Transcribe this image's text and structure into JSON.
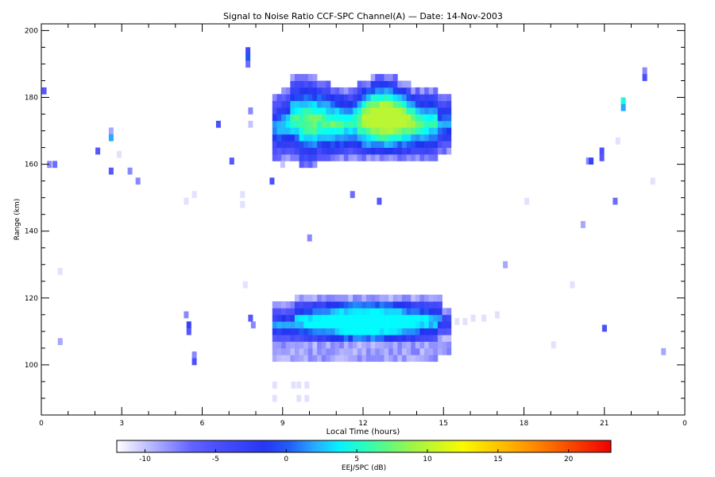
{
  "chart_data": {
    "type": "heatmap",
    "title": "Signal to Noise Ratio CCF-SPC Channel(A) — Date: 14-Nov-2003",
    "xlabel": "Local Time (hours)",
    "ylabel": "Range (km)",
    "xlim": [
      0,
      24
    ],
    "ylim": [
      85,
      202
    ],
    "x_ticks": [
      "0",
      "3",
      "6",
      "9",
      "12",
      "15",
      "18",
      "21",
      "0"
    ],
    "y_ticks": [
      "100",
      "120",
      "140",
      "160",
      "180",
      "200"
    ],
    "colorbar": {
      "label": "EEJ/SPC (dB)",
      "range": [
        -12,
        23
      ],
      "ticks": [
        "-10",
        "-5",
        "0",
        "5",
        "10",
        "15",
        "20"
      ]
    },
    "regions": [
      {
        "name": "upper-echo",
        "x_range": [
          8.7,
          15.3
        ],
        "y_range": [
          160,
          186
        ],
        "peak_db": 10,
        "peak_time": 13.0
      },
      {
        "name": "lower-echo",
        "x_range": [
          8.7,
          15.3
        ],
        "y_range": [
          103,
          120
        ],
        "peak_db": 4,
        "peak_time": 12.3
      }
    ],
    "sparse_points": [
      {
        "t": 0.1,
        "r": 182,
        "db": -6
      },
      {
        "t": 0.3,
        "r": 160,
        "db": -8
      },
      {
        "t": 0.5,
        "r": 160,
        "db": -7
      },
      {
        "t": 0.7,
        "r": 128,
        "db": -11
      },
      {
        "t": 0.7,
        "r": 107,
        "db": -9
      },
      {
        "t": 2.1,
        "r": 164,
        "db": -6
      },
      {
        "t": 2.6,
        "r": 170,
        "db": -9
      },
      {
        "t": 2.6,
        "r": 168,
        "db": 2
      },
      {
        "t": 2.6,
        "r": 158,
        "db": -6
      },
      {
        "t": 2.9,
        "r": 163,
        "db": -11
      },
      {
        "t": 3.3,
        "r": 158,
        "db": -8
      },
      {
        "t": 3.6,
        "r": 155,
        "db": -8
      },
      {
        "t": 5.4,
        "r": 149,
        "db": -11
      },
      {
        "t": 5.4,
        "r": 115,
        "db": -8
      },
      {
        "t": 5.5,
        "r": 112,
        "db": -3
      },
      {
        "t": 5.5,
        "r": 110,
        "db": -6
      },
      {
        "t": 5.7,
        "r": 151,
        "db": -11
      },
      {
        "t": 5.7,
        "r": 103,
        "db": -8
      },
      {
        "t": 5.7,
        "r": 101,
        "db": -5
      },
      {
        "t": 6.6,
        "r": 172,
        "db": -5
      },
      {
        "t": 7.1,
        "r": 161,
        "db": -6
      },
      {
        "t": 7.5,
        "r": 151,
        "db": -11
      },
      {
        "t": 7.5,
        "r": 148,
        "db": -11
      },
      {
        "t": 7.6,
        "r": 124,
        "db": -11
      },
      {
        "t": 7.7,
        "r": 194,
        "db": -4
      },
      {
        "t": 7.7,
        "r": 192,
        "db": 0
      },
      {
        "t": 7.7,
        "r": 190,
        "db": -7
      },
      {
        "t": 7.8,
        "r": 176,
        "db": -8
      },
      {
        "t": 7.8,
        "r": 172,
        "db": -10
      },
      {
        "t": 7.8,
        "r": 114,
        "db": -6
      },
      {
        "t": 7.9,
        "r": 112,
        "db": -8
      },
      {
        "t": 8.6,
        "r": 155,
        "db": -5
      },
      {
        "t": 8.7,
        "r": 94,
        "db": -11
      },
      {
        "t": 8.7,
        "r": 90,
        "db": -11
      },
      {
        "t": 9.0,
        "r": 160,
        "db": -10
      },
      {
        "t": 9.4,
        "r": 94,
        "db": -11
      },
      {
        "t": 9.6,
        "r": 94,
        "db": -11
      },
      {
        "t": 9.9,
        "r": 94,
        "db": -11
      },
      {
        "t": 9.6,
        "r": 90,
        "db": -11
      },
      {
        "t": 9.9,
        "r": 90,
        "db": -11
      },
      {
        "t": 10.0,
        "r": 138,
        "db": -8
      },
      {
        "t": 11.6,
        "r": 151,
        "db": -7
      },
      {
        "t": 12.6,
        "r": 149,
        "db": -6
      },
      {
        "t": 15.5,
        "r": 113,
        "db": -11
      },
      {
        "t": 15.8,
        "r": 113,
        "db": -11
      },
      {
        "t": 16.1,
        "r": 114,
        "db": -11
      },
      {
        "t": 16.5,
        "r": 114,
        "db": -11
      },
      {
        "t": 17.0,
        "r": 115,
        "db": -11
      },
      {
        "t": 17.3,
        "r": 130,
        "db": -9
      },
      {
        "t": 18.1,
        "r": 149,
        "db": -11
      },
      {
        "t": 19.1,
        "r": 106,
        "db": -11
      },
      {
        "t": 19.8,
        "r": 124,
        "db": -11
      },
      {
        "t": 20.2,
        "r": 142,
        "db": -9
      },
      {
        "t": 20.4,
        "r": 161,
        "db": -8
      },
      {
        "t": 20.5,
        "r": 161,
        "db": -3
      },
      {
        "t": 20.9,
        "r": 164,
        "db": -5
      },
      {
        "t": 20.9,
        "r": 162,
        "db": -6
      },
      {
        "t": 21.0,
        "r": 111,
        "db": -5
      },
      {
        "t": 21.4,
        "r": 149,
        "db": -7
      },
      {
        "t": 21.5,
        "r": 167,
        "db": -11
      },
      {
        "t": 21.7,
        "r": 179,
        "db": 5
      },
      {
        "t": 21.7,
        "r": 177,
        "db": 2
      },
      {
        "t": 22.5,
        "r": 188,
        "db": -8
      },
      {
        "t": 22.5,
        "r": 186,
        "db": -5
      },
      {
        "t": 22.8,
        "r": 155,
        "db": -11
      },
      {
        "t": 23.2,
        "r": 104,
        "db": -9
      }
    ]
  }
}
